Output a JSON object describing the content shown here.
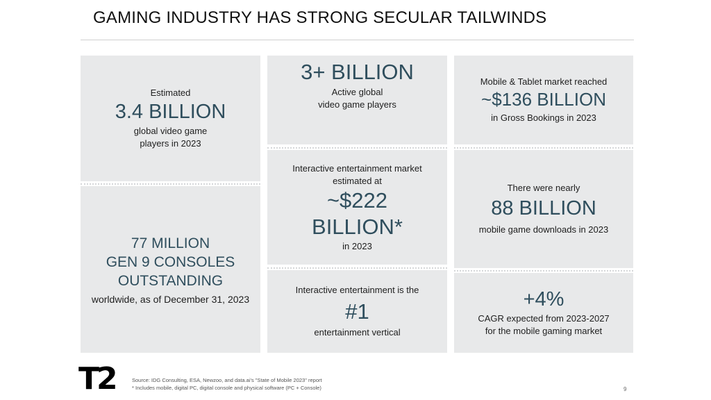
{
  "title": "GAMING INDUSTRY HAS STRONG SECULAR TAILWINDS",
  "tiles": {
    "estimated_players": {
      "pre": "Estimated",
      "big": "3.4 BILLION",
      "post1": "global video game",
      "post2": "players in 2023"
    },
    "consoles": {
      "big1": "77 MILLION",
      "big2": "GEN 9 CONSOLES",
      "big3": "OUTSTANDING",
      "post": "worldwide, as of December 31, 2023"
    },
    "active_players": {
      "big": "3+ BILLION",
      "post1": "Active global",
      "post2": "video game players"
    },
    "market": {
      "pre1": "Interactive entertainment market",
      "pre2": "estimated at",
      "big1": "~$222",
      "big2": "BILLION*",
      "post": "in 2023"
    },
    "vertical": {
      "pre": "Interactive entertainment is the",
      "big": "#1",
      "post": "entertainment vertical"
    },
    "mobile_tablet": {
      "pre": "Mobile & Tablet market reached",
      "big": "~$136 BILLION",
      "post": "in Gross Bookings in 2023"
    },
    "downloads": {
      "pre": "There were nearly",
      "big": "88 BILLION",
      "post": "mobile game downloads in 2023"
    },
    "cagr": {
      "big": "+4%",
      "post1": "CAGR expected from 2023-2027",
      "post2": "for the mobile gaming market"
    }
  },
  "logo": "T2",
  "source_line": "Source:  IDG Consulting, ESA, Newzoo, and data.ai's \"State of Mobile 2023\" report",
  "footnote": "*  Includes mobile, digital PC, digital console and physical software (PC + Console)",
  "page_number": "9",
  "colors": {
    "tile_bg": "#e8e9ea",
    "accent_text": "#2f4e5d"
  }
}
